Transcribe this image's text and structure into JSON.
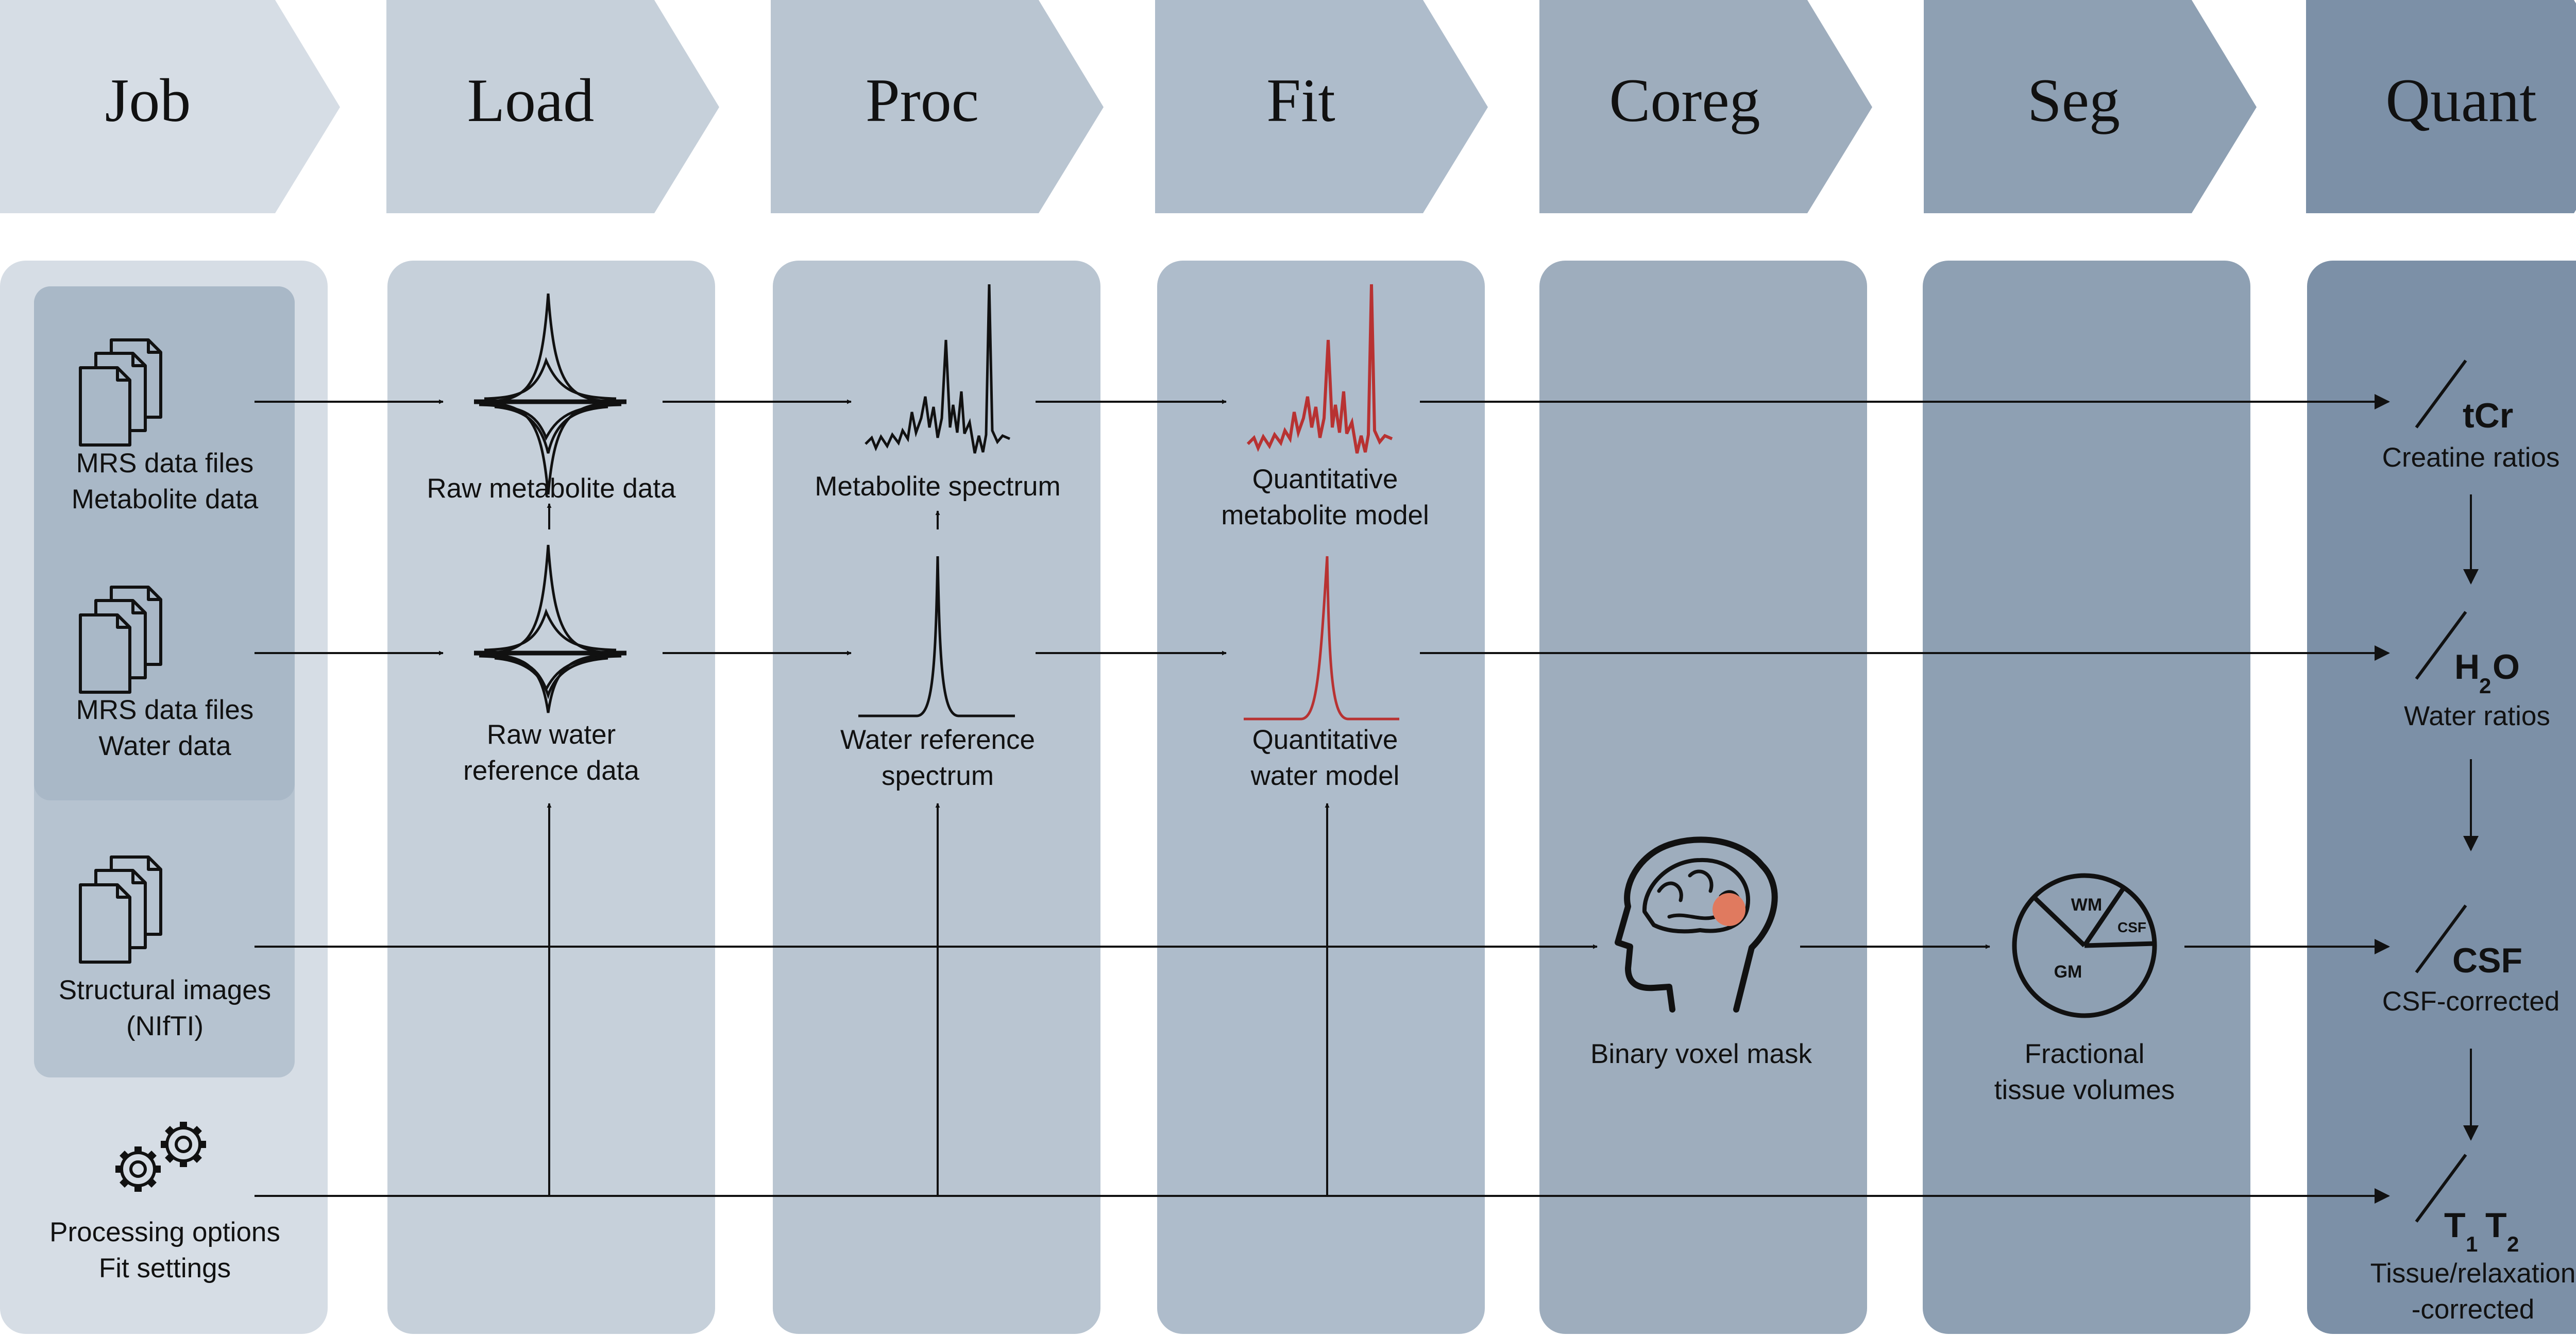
{
  "stages": [
    "Job",
    "Load",
    "Proc",
    "Fit",
    "Coreg",
    "Seg",
    "Quant"
  ],
  "colors": {
    "stage": [
      "#d6dde5",
      "#c6d0da",
      "#b9c5d1",
      "#aebccb",
      "#9eadbd",
      "#8ea0b3",
      "#7c90a7"
    ],
    "inner_box": "#a9b8c7",
    "spectrum": "#111111",
    "model": "#b83232",
    "mask": "#e07a5f"
  },
  "job": {
    "metabolite_line1": "MRS data files",
    "metabolite_line2": "Metabolite data",
    "water_line1": "MRS data files",
    "water_line2": "Water data",
    "structural_line1": "Structural images",
    "structural_line2": "(NIfTI)",
    "options_line1": "Processing options",
    "options_line2": "Fit settings"
  },
  "load": {
    "raw_metabolite": "Raw metabolite data",
    "raw_water_line1": "Raw water",
    "raw_water_line2": "reference data"
  },
  "proc": {
    "metabolite_spectrum": "Metabolite spectrum",
    "water_ref_line1": "Water reference",
    "water_ref_line2": "spectrum"
  },
  "fit": {
    "metab_model_line1": "Quantitative",
    "metab_model_line2": "metabolite model",
    "water_model_line1": "Quantitative",
    "water_model_line2": "water model"
  },
  "coreg": {
    "mask_label": "Binary voxel mask"
  },
  "seg": {
    "label_line1": "Fractional",
    "label_line2": "tissue volumes",
    "pie": [
      "WM",
      "CSF",
      "GM"
    ]
  },
  "quant": {
    "tcr_symbol": "tCr",
    "tcr_label": "Creatine ratios",
    "h2o_h": "H",
    "h2o_sub": "2",
    "h2o_o": "O",
    "water_label": "Water ratios",
    "csf_symbol": "CSF",
    "csf_label": "CSF-corrected",
    "t1": "T",
    "t1_sub": "1",
    "t2": "T",
    "t2_sub": "2",
    "tissue_line1": "Tissue/relaxation",
    "tissue_line2": "-corrected"
  }
}
